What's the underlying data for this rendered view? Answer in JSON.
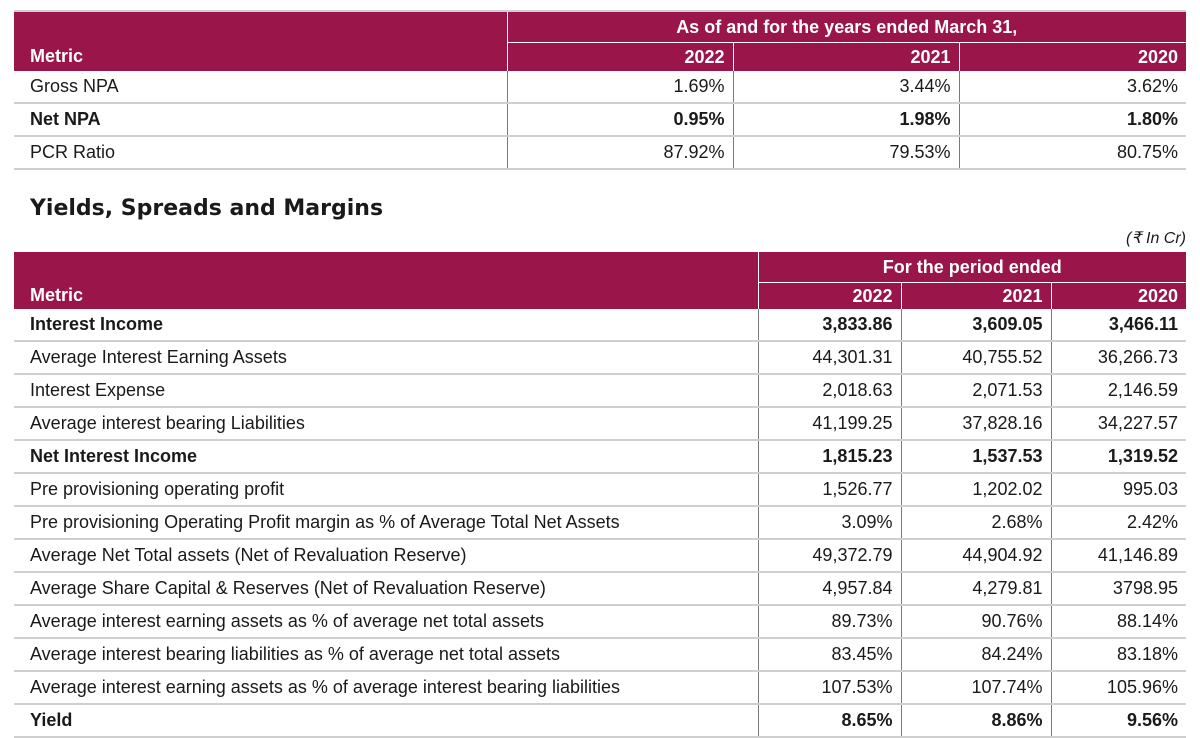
{
  "table1": {
    "group_header": "As of and for the years ended March 31,",
    "metric_label": "Metric",
    "years": [
      "2022",
      "2021",
      "2020"
    ],
    "rows": [
      {
        "label": "Gross NPA",
        "values": [
          "1.69%",
          "3.44%",
          "3.62%"
        ],
        "bold": false
      },
      {
        "label": "Net NPA",
        "values": [
          "0.95%",
          "1.98%",
          "1.80%"
        ],
        "bold": true
      },
      {
        "label": "PCR Ratio",
        "values": [
          "87.92%",
          "79.53%",
          "80.75%"
        ],
        "bold": false
      }
    ]
  },
  "section_title": "Yields, Spreads and Margins",
  "unit_note": "(₹ In Cr)",
  "table2": {
    "group_header": "For the period ended",
    "metric_label": "Metric",
    "years": [
      "2022",
      "2021",
      "2020"
    ],
    "rows": [
      {
        "label": "Interest Income",
        "values": [
          "3,833.86",
          "3,609.05",
          "3,466.11"
        ],
        "bold": true
      },
      {
        "label": "Average Interest Earning Assets",
        "values": [
          "44,301.31",
          "40,755.52",
          "36,266.73"
        ],
        "bold": false
      },
      {
        "label": "Interest Expense",
        "values": [
          "2,018.63",
          "2,071.53",
          "2,146.59"
        ],
        "bold": false
      },
      {
        "label": "Average interest bearing Liabilities",
        "values": [
          "41,199.25",
          "37,828.16",
          "34,227.57"
        ],
        "bold": false
      },
      {
        "label": "Net Interest Income",
        "values": [
          "1,815.23",
          "1,537.53",
          "1,319.52"
        ],
        "bold": true
      },
      {
        "label": "Pre provisioning operating profit",
        "values": [
          "1,526.77",
          "1,202.02",
          "995.03"
        ],
        "bold": false
      },
      {
        "label": "Pre provisioning Operating Profit margin as % of Average Total Net Assets",
        "values": [
          "3.09%",
          "2.68%",
          "2.42%"
        ],
        "bold": false
      },
      {
        "label": "Average Net Total assets (Net of Revaluation Reserve)",
        "values": [
          "49,372.79",
          "44,904.92",
          "41,146.89"
        ],
        "bold": false
      },
      {
        "label": "Average Share Capital & Reserves (Net of Revaluation Reserve)",
        "values": [
          "4,957.84",
          "4,279.81",
          "3798.95"
        ],
        "bold": false
      },
      {
        "label": "Average interest earning assets as % of average net total assets",
        "values": [
          "89.73%",
          "90.76%",
          "88.14%"
        ],
        "bold": false
      },
      {
        "label": "Average interest bearing liabilities as % of average net total assets",
        "values": [
          "83.45%",
          "84.24%",
          "83.18%"
        ],
        "bold": false
      },
      {
        "label": "Average interest earning assets as % of average interest bearing liabilities",
        "values": [
          "107.53%",
          "107.74%",
          "105.96%"
        ],
        "bold": false
      },
      {
        "label": "Yield",
        "values": [
          "8.65%",
          "8.86%",
          "9.56%"
        ],
        "bold": true
      }
    ]
  }
}
